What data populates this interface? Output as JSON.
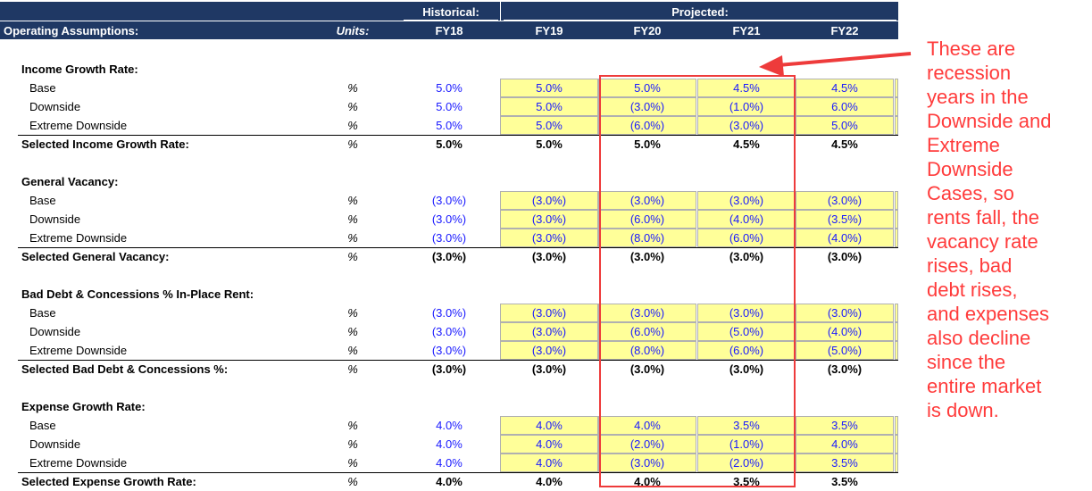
{
  "header": {
    "label": "Operating Assumptions:",
    "units": "Units:",
    "historical": "Historical:",
    "projected": "Projected:",
    "years": [
      "FY18",
      "FY19",
      "FY20",
      "FY21",
      "FY22"
    ]
  },
  "sections": [
    {
      "title": "Income Growth Rate:",
      "rows": [
        {
          "label": "Base",
          "unit": "%",
          "values": [
            "5.0%",
            "5.0%",
            "5.0%",
            "4.5%",
            "4.5%"
          ]
        },
        {
          "label": "Downside",
          "unit": "%",
          "values": [
            "5.0%",
            "5.0%",
            "(3.0%)",
            "(1.0%)",
            "6.0%"
          ]
        },
        {
          "label": "Extreme Downside",
          "unit": "%",
          "values": [
            "5.0%",
            "5.0%",
            "(6.0%)",
            "(3.0%)",
            "5.0%"
          ]
        }
      ],
      "selected": {
        "label": "Selected Income Growth Rate:",
        "unit": "%",
        "values": [
          "5.0%",
          "5.0%",
          "5.0%",
          "4.5%",
          "4.5%"
        ]
      }
    },
    {
      "title": "General Vacancy:",
      "rows": [
        {
          "label": "Base",
          "unit": "%",
          "values": [
            "(3.0%)",
            "(3.0%)",
            "(3.0%)",
            "(3.0%)",
            "(3.0%)"
          ]
        },
        {
          "label": "Downside",
          "unit": "%",
          "values": [
            "(3.0%)",
            "(3.0%)",
            "(6.0%)",
            "(4.0%)",
            "(3.5%)"
          ]
        },
        {
          "label": "Extreme Downside",
          "unit": "%",
          "values": [
            "(3.0%)",
            "(3.0%)",
            "(8.0%)",
            "(6.0%)",
            "(4.0%)"
          ]
        }
      ],
      "selected": {
        "label": "Selected General Vacancy:",
        "unit": "%",
        "values": [
          "(3.0%)",
          "(3.0%)",
          "(3.0%)",
          "(3.0%)",
          "(3.0%)"
        ]
      }
    },
    {
      "title": "Bad Debt & Concessions % In-Place Rent:",
      "rows": [
        {
          "label": "Base",
          "unit": "%",
          "values": [
            "(3.0%)",
            "(3.0%)",
            "(3.0%)",
            "(3.0%)",
            "(3.0%)"
          ]
        },
        {
          "label": "Downside",
          "unit": "%",
          "values": [
            "(3.0%)",
            "(3.0%)",
            "(6.0%)",
            "(5.0%)",
            "(4.0%)"
          ]
        },
        {
          "label": "Extreme Downside",
          "unit": "%",
          "values": [
            "(3.0%)",
            "(3.0%)",
            "(8.0%)",
            "(6.0%)",
            "(5.0%)"
          ]
        }
      ],
      "selected": {
        "label": "Selected Bad Debt & Concessions %:",
        "unit": "%",
        "values": [
          "(3.0%)",
          "(3.0%)",
          "(3.0%)",
          "(3.0%)",
          "(3.0%)"
        ]
      }
    },
    {
      "title": "Expense Growth Rate:",
      "rows": [
        {
          "label": "Base",
          "unit": "%",
          "values": [
            "4.0%",
            "4.0%",
            "4.0%",
            "3.5%",
            "3.5%"
          ]
        },
        {
          "label": "Downside",
          "unit": "%",
          "values": [
            "4.0%",
            "4.0%",
            "(2.0%)",
            "(1.0%)",
            "4.0%"
          ]
        },
        {
          "label": "Extreme Downside",
          "unit": "%",
          "values": [
            "4.0%",
            "4.0%",
            "(3.0%)",
            "(2.0%)",
            "3.5%"
          ]
        }
      ],
      "selected": {
        "label": "Selected Expense Growth Rate:",
        "unit": "%",
        "values": [
          "4.0%",
          "4.0%",
          "4.0%",
          "3.5%",
          "3.5%"
        ]
      }
    }
  ],
  "annotation": {
    "lines": [
      "These are",
      "recession",
      "years in the",
      "Downside and",
      "Extreme",
      "Downside",
      "Cases, so",
      "rents fall, the",
      "vacancy rate",
      "rises, bad",
      "debt rises,",
      "and expenses",
      "also decline",
      "since the",
      "entire market",
      "is down."
    ]
  }
}
